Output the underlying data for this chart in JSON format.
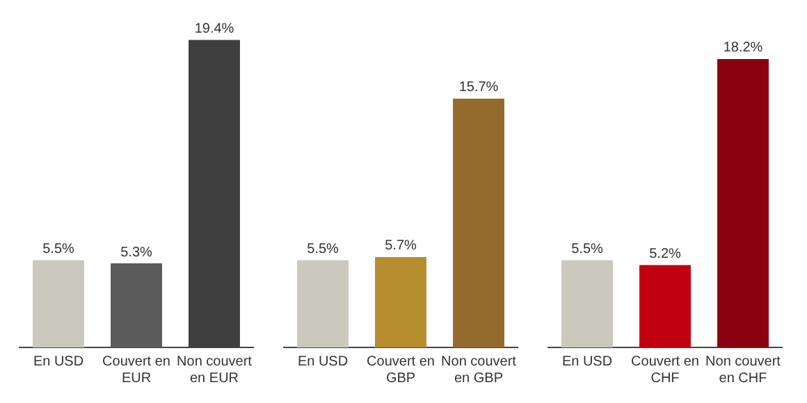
{
  "chart_data": [
    {
      "type": "bar",
      "categories": [
        "En USD",
        "Couvert en EUR",
        "Non couvert en EUR"
      ],
      "values": [
        5.5,
        5.3,
        19.4
      ],
      "colors": [
        "#cbc9bd",
        "#5a5b5a",
        "#3f3f3f"
      ],
      "value_labels": [
        "5.5%",
        "5.3%",
        "19.4%"
      ]
    },
    {
      "type": "bar",
      "categories": [
        "En USD",
        "Couvert en GBP",
        "Non couvert en GBP"
      ],
      "values": [
        5.5,
        5.7,
        15.7
      ],
      "colors": [
        "#cbc9bd",
        "#b68d2e",
        "#946b2c"
      ],
      "value_labels": [
        "5.5%",
        "5.7%",
        "15.7%"
      ]
    },
    {
      "type": "bar",
      "categories": [
        "En USD",
        "Couvert en CHF",
        "Non couvert en CHF"
      ],
      "values": [
        5.5,
        5.2,
        18.2
      ],
      "colors": [
        "#cbc9bd",
        "#c00010",
        "#8b000f"
      ],
      "value_labels": [
        "5.5%",
        "5.2%",
        "18.2%"
      ]
    }
  ]
}
